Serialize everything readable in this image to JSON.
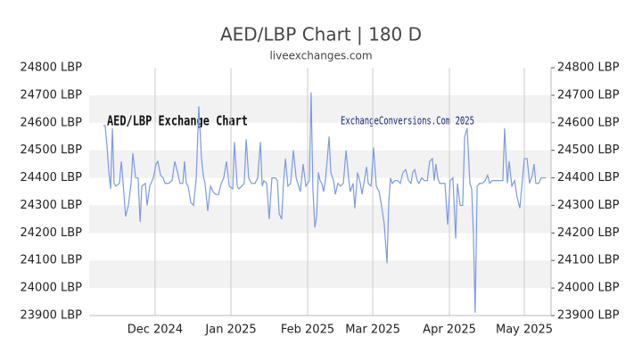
{
  "chart_data": {
    "type": "line",
    "title": "AED/LBP Chart | 180 D",
    "subtitle": "liveexchanges.com",
    "annotations": [
      "AED/LBP Exchange Chart",
      "ExchangeConversions.Com 2025"
    ],
    "color": "#7b9be0",
    "xlim": [
      0,
      185
    ],
    "xticks": [
      {
        "value": 26.4,
        "label": "Dec 2024"
      },
      {
        "value": 56.8,
        "label": "Jan 2025"
      },
      {
        "value": 87.5,
        "label": "Feb 2025"
      },
      {
        "value": 113.6,
        "label": "Mar 2025"
      },
      {
        "value": 144.3,
        "label": "Apr 2025"
      },
      {
        "value": 174.3,
        "label": "May 2025"
      }
    ],
    "ylim": [
      23900,
      24800
    ],
    "yticks": [
      {
        "value": 23900,
        "label": "23900 LBP"
      },
      {
        "value": 24000,
        "label": "24000 LBP"
      },
      {
        "value": 24100,
        "label": "24100 LBP"
      },
      {
        "value": 24200,
        "label": "24200 LBP"
      },
      {
        "value": 24300,
        "label": "24300 LBP"
      },
      {
        "value": 24400,
        "label": "24400 LBP"
      },
      {
        "value": 24500,
        "label": "24500 LBP"
      },
      {
        "value": 24600,
        "label": "24600 LBP"
      },
      {
        "value": 24700,
        "label": "24700 LBP"
      },
      {
        "value": 24800,
        "label": "24800 LBP"
      }
    ],
    "grid": true,
    "x": [
      5.7,
      6.4,
      7.1,
      7.9,
      8.6,
      9.3,
      10,
      10.7,
      12.1,
      12.9,
      13.6,
      14.6,
      15.7,
      16.8,
      17.5,
      18.6,
      19.6,
      20.4,
      21.1,
      22.5,
      23.2,
      24.3,
      25.7,
      26.8,
      27.5,
      28.6,
      29.6,
      30.4,
      31.8,
      33.2,
      34.3,
      35.4,
      36.4,
      37.5,
      38.2,
      38.9,
      39.6,
      40.7,
      41.8,
      42.9,
      43.9,
      45,
      45.7,
      46.4,
      47.5,
      48.6,
      49.6,
      50.7,
      51.8,
      52.9,
      53.9,
      55,
      56.1,
      57.5,
      58.2,
      59.3,
      60,
      61.1,
      62.1,
      62.9,
      63.9,
      65,
      66.4,
      67.5,
      68.6,
      69.3,
      70,
      71.1,
      72.1,
      73.2,
      74.6,
      75.4,
      76.1,
      77.1,
      77.9,
      78.6,
      79.6,
      80.7,
      81.8,
      82.9,
      83.9,
      84.6,
      85.7,
      86.8,
      88.2,
      88.9,
      89.6,
      90.4,
      91.1,
      91.8,
      92.5,
      93.2,
      93.9,
      94.6,
      95.4,
      96.1,
      96.8,
      97.9,
      98.6,
      99.6,
      100.7,
      101.8,
      102.9,
      103.9,
      104.6,
      105.7,
      106.4,
      107.5,
      108.6,
      109.3,
      110,
      111.1,
      111.8,
      112.9,
      113.9,
      115,
      116.1,
      117.1,
      118.2,
      119.3,
      120,
      120.7,
      121.4,
      122.5,
      123.6,
      124.6,
      125.7,
      126.8,
      127.9,
      128.9,
      129.6,
      130.4,
      131.4,
      132.1,
      133.2,
      134.3,
      135.4,
      136.4,
      137.5,
      138.2,
      138.9,
      139.6,
      140.4,
      141.4,
      142.5,
      143.6,
      144.6,
      145.7,
      146.8,
      147.5,
      148.6,
      149.6,
      150.4,
      151.4,
      152.5,
      153.2,
      153.9,
      154.6,
      155.4,
      156.4,
      157.5,
      158.6,
      159.6,
      160.4,
      161.4,
      162.5,
      163.6,
      164.6,
      165.7,
      166.4,
      167.5,
      168.2,
      169.3,
      170.4,
      171.4,
      172.5,
      173.6,
      174.3,
      175.4,
      176.4,
      177.5,
      178.2,
      178.9,
      180,
      181.1,
      182.9
    ],
    "values": [
      24590,
      24590,
      24520,
      24420,
      24360,
      24580,
      24380,
      24370,
      24380,
      24460,
      24380,
      24260,
      24300,
      24380,
      24490,
      24400,
      24400,
      24240,
      24370,
      24380,
      24300,
      24370,
      24400,
      24450,
      24460,
      24410,
      24400,
      24380,
      24380,
      24390,
      24460,
      24420,
      24380,
      24380,
      24460,
      24380,
      24370,
      24310,
      24300,
      24400,
      24660,
      24470,
      24410,
      24380,
      24280,
      24370,
      24350,
      24340,
      24340,
      24380,
      24400,
      24460,
      24370,
      24360,
      24530,
      24370,
      24360,
      24370,
      24380,
      24540,
      24400,
      24380,
      24380,
      24400,
      24530,
      24370,
      24390,
      24380,
      24250,
      24400,
      24400,
      24390,
      24270,
      24250,
      24390,
      24470,
      24370,
      24380,
      24500,
      24400,
      24370,
      24350,
      24450,
      24370,
      24390,
      24710,
      24360,
      24220,
      24260,
      24420,
      24390,
      24380,
      24350,
      24390,
      24470,
      24550,
      24420,
      24390,
      24340,
      24380,
      24370,
      24380,
      24500,
      24400,
      24350,
      24380,
      24290,
      24420,
      24380,
      24340,
      24380,
      24440,
      24380,
      24370,
      24510,
      24370,
      24350,
      24300,
      24230,
      24090,
      24310,
      24400,
      24380,
      24390,
      24390,
      24380,
      24420,
      24430,
      24390,
      24380,
      24420,
      24430,
      24390,
      24380,
      24400,
      24390,
      24390,
      24460,
      24470,
      24390,
      24450,
      24400,
      24380,
      24380,
      24380,
      24230,
      24390,
      24400,
      24180,
      24380,
      24300,
      24300,
      24550,
      24580,
      24380,
      24360,
      24200,
      23910,
      24370,
      24380,
      24380,
      24390,
      24410,
      24380,
      24390,
      24390,
      24390,
      24390,
      24390,
      24580,
      24380,
      24460,
      24370,
      24390,
      24330,
      24290,
      24400,
      24470,
      24470,
      24380,
      24410,
      24450,
      24380,
      24380,
      24400,
      24400
    ]
  }
}
